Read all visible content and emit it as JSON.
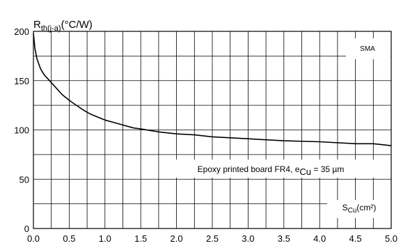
{
  "chart_data": {
    "type": "line",
    "ylabel": {
      "main": "R",
      "sub": "th(j-a)",
      "unit": "(°C/W)"
    },
    "xlabel": {
      "main": "S",
      "sub": "Cu",
      "unit": "(cm²)"
    },
    "xlim": [
      0,
      5
    ],
    "ylim": [
      0,
      200
    ],
    "x_ticks": [
      "0.0",
      "0.5",
      "1.0",
      "1.5",
      "2.0",
      "2.5",
      "3.0",
      "3.5",
      "4.0",
      "4.5",
      "5.0"
    ],
    "y_ticks": [
      "0",
      "50",
      "100",
      "150",
      "200"
    ],
    "x_minor_step": 0.25,
    "y_minor_step": 25,
    "grid": true,
    "package_label": "SMA",
    "annotation": {
      "prefix": "Epoxy printed board FR4, e",
      "sub": "Cu",
      "suffix": " = 35 µm"
    },
    "series": [
      {
        "x": [
          0.0,
          0.02,
          0.05,
          0.1,
          0.15,
          0.2,
          0.3,
          0.4,
          0.5,
          0.6,
          0.7,
          0.8,
          0.9,
          1.0,
          1.2,
          1.4,
          1.5,
          1.75,
          2.0,
          2.25,
          2.5,
          3.0,
          3.5,
          4.0,
          4.5,
          4.75,
          5.0
        ],
        "y": [
          198,
          183,
          172,
          162,
          156,
          152,
          144,
          136,
          130,
          125,
          120,
          116,
          113,
          110,
          106,
          102,
          101,
          98,
          96,
          95,
          93,
          91,
          89,
          88,
          86,
          86,
          84
        ]
      }
    ]
  }
}
